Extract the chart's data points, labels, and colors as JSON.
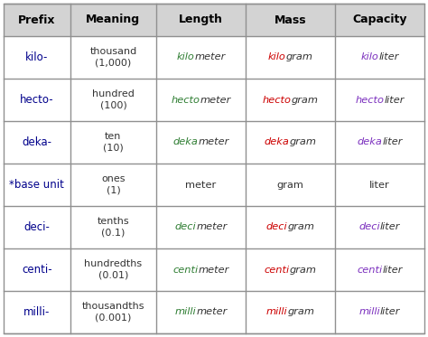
{
  "headers": [
    "Prefix",
    "Meaning",
    "Length",
    "Mass",
    "Capacity"
  ],
  "rows": [
    [
      "kilo-",
      "thousand\n(1,000)",
      "kilo",
      "meter",
      "kilo",
      "gram",
      "kilo",
      "liter"
    ],
    [
      "hecto-",
      "hundred\n(100)",
      "hecto",
      "meter",
      "hecto",
      "gram",
      "hecto",
      "liter"
    ],
    [
      "deka-",
      "ten\n(10)",
      "deka",
      "meter",
      "deka",
      "gram",
      "deka",
      "liter"
    ],
    [
      "*base unit",
      "ones\n(1)",
      "",
      "meter",
      "",
      "gram",
      "",
      "liter"
    ],
    [
      "deci-",
      "tenths\n(0.1)",
      "deci",
      "meter",
      "deci",
      "gram",
      "deci",
      "liter"
    ],
    [
      "centi-",
      "hundredths\n(0.01)",
      "centi",
      "meter",
      "centi",
      "gram",
      "centi",
      "liter"
    ],
    [
      "milli-",
      "thousandths\n(0.001)",
      "milli",
      "meter",
      "milli",
      "gram",
      "milli",
      "liter"
    ]
  ],
  "headers_bold": true,
  "header_bg": "#d3d3d3",
  "border_color": "#909090",
  "prefix_color": "#00008B",
  "meaning_color": "#333333",
  "length_pre_color": "#2E7D32",
  "length_suf_color": "#333333",
  "mass_pre_color": "#CC0000",
  "mass_suf_color": "#333333",
  "cap_pre_color": "#7B2FBE",
  "cap_suf_color": "#333333",
  "fig_width": 4.74,
  "fig_height": 3.73,
  "dpi": 100
}
